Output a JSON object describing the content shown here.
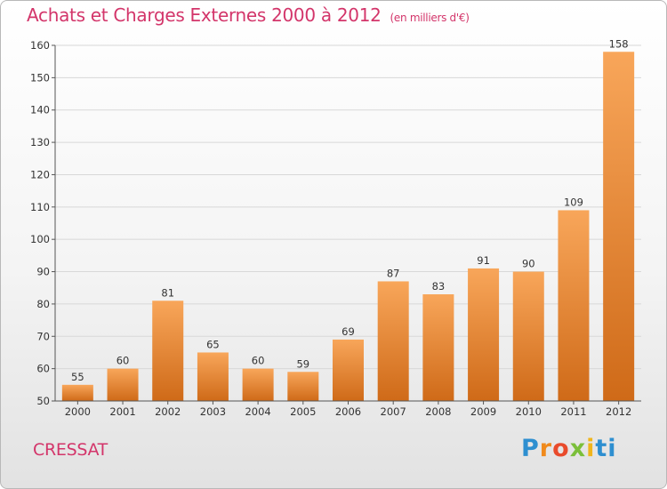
{
  "header": {
    "title": "Achats et Charges Externes 2000 à 2012",
    "unit": "(en milliers d'€)"
  },
  "footer": {
    "place": "CRESSAT",
    "logo_letters": [
      "P",
      "r",
      "o",
      "x",
      "i",
      "ti"
    ]
  },
  "colors": {
    "title": "#d3356a",
    "bar_light": "#f8a65a",
    "bar_dark": "#cf6a18",
    "grid": "#d8d8d8"
  },
  "chart_data": {
    "type": "bar",
    "title": "Achats et Charges Externes 2000 à 2012",
    "categories": [
      "2000",
      "2001",
      "2002",
      "2003",
      "2004",
      "2005",
      "2006",
      "2007",
      "2008",
      "2009",
      "2010",
      "2011",
      "2012"
    ],
    "values": [
      55,
      60,
      81,
      65,
      60,
      59,
      69,
      87,
      83,
      91,
      90,
      109,
      158
    ],
    "ylim": [
      50,
      160
    ],
    "yticks": [
      50,
      60,
      70,
      80,
      90,
      100,
      110,
      120,
      130,
      140,
      150,
      160
    ],
    "grid": true,
    "xlabel": "",
    "ylabel": ""
  }
}
